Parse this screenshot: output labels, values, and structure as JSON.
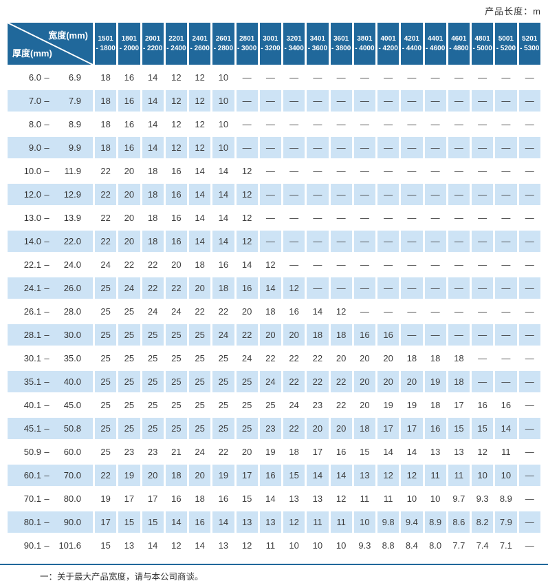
{
  "page": {
    "top_right_label": "产品长度：m",
    "footnote": "一：关于最大产品宽度，请与本公司商谈。"
  },
  "colors": {
    "header_bg": "#20689B",
    "stripe_bg": "#CDE3F5",
    "header_text": "#FFFFFF",
    "body_text": "#3D3D3D",
    "divider": "#20689B"
  },
  "table": {
    "corner": {
      "top_label": "宽度(mm)",
      "bottom_label": "厚度(mm)"
    },
    "range_separator": "–",
    "width_columns": [
      {
        "line1": "1501",
        "line2": "- 1800"
      },
      {
        "line1": "1801",
        "line2": "- 2000"
      },
      {
        "line1": "2001",
        "line2": "- 2200"
      },
      {
        "line1": "2201",
        "line2": "- 2400"
      },
      {
        "line1": "2401",
        "line2": "- 2600"
      },
      {
        "line1": "2601",
        "line2": "- 2800"
      },
      {
        "line1": "2801",
        "line2": "- 3000"
      },
      {
        "line1": "3001",
        "line2": "- 3200"
      },
      {
        "line1": "3201",
        "line2": "- 3400"
      },
      {
        "line1": "3401",
        "line2": "- 3600"
      },
      {
        "line1": "3601",
        "line2": "- 3800"
      },
      {
        "line1": "3801",
        "line2": "- 4000"
      },
      {
        "line1": "4001",
        "line2": "- 4200"
      },
      {
        "line1": "4201",
        "line2": "- 4400"
      },
      {
        "line1": "4401",
        "line2": "- 4600"
      },
      {
        "line1": "4601",
        "line2": "- 4800"
      },
      {
        "line1": "4801",
        "line2": "- 5000"
      },
      {
        "line1": "5001",
        "line2": "- 5200"
      },
      {
        "line1": "5201",
        "line2": "- 5300"
      }
    ],
    "rows": [
      {
        "min": "6.0",
        "max": "6.9",
        "values": [
          "18",
          "16",
          "14",
          "12",
          "12",
          "10",
          "—",
          "—",
          "—",
          "—",
          "—",
          "—",
          "—",
          "—",
          "—",
          "—",
          "—",
          "—",
          "—"
        ]
      },
      {
        "min": "7.0",
        "max": "7.9",
        "values": [
          "18",
          "16",
          "14",
          "12",
          "12",
          "10",
          "—",
          "—",
          "—",
          "—",
          "—",
          "—",
          "—",
          "—",
          "—",
          "—",
          "—",
          "—",
          "—"
        ]
      },
      {
        "min": "8.0",
        "max": "8.9",
        "values": [
          "18",
          "16",
          "14",
          "12",
          "12",
          "10",
          "—",
          "—",
          "—",
          "—",
          "—",
          "—",
          "—",
          "—",
          "—",
          "—",
          "—",
          "—",
          "—"
        ]
      },
      {
        "min": "9.0",
        "max": "9.9",
        "values": [
          "18",
          "16",
          "14",
          "12",
          "12",
          "10",
          "—",
          "—",
          "—",
          "—",
          "—",
          "—",
          "—",
          "—",
          "—",
          "—",
          "—",
          "—",
          "—"
        ]
      },
      {
        "min": "10.0",
        "max": "11.9",
        "values": [
          "22",
          "20",
          "18",
          "16",
          "14",
          "14",
          "12",
          "—",
          "—",
          "—",
          "—",
          "—",
          "—",
          "—",
          "—",
          "—",
          "—",
          "—",
          "—"
        ]
      },
      {
        "min": "12.0",
        "max": "12.9",
        "values": [
          "22",
          "20",
          "18",
          "16",
          "14",
          "14",
          "12",
          "—",
          "—",
          "—",
          "—",
          "—",
          "—",
          "—",
          "—",
          "—",
          "—",
          "—",
          "—"
        ]
      },
      {
        "min": "13.0",
        "max": "13.9",
        "values": [
          "22",
          "20",
          "18",
          "16",
          "14",
          "14",
          "12",
          "—",
          "—",
          "—",
          "—",
          "—",
          "—",
          "—",
          "—",
          "—",
          "—",
          "—",
          "—"
        ]
      },
      {
        "min": "14.0",
        "max": "22.0",
        "values": [
          "22",
          "20",
          "18",
          "16",
          "14",
          "14",
          "12",
          "—",
          "—",
          "—",
          "—",
          "—",
          "—",
          "—",
          "—",
          "—",
          "—",
          "—",
          "—"
        ]
      },
      {
        "min": "22.1",
        "max": "24.0",
        "values": [
          "24",
          "22",
          "22",
          "20",
          "18",
          "16",
          "14",
          "12",
          "—",
          "—",
          "—",
          "—",
          "—",
          "—",
          "—",
          "—",
          "—",
          "—",
          "—"
        ]
      },
      {
        "min": "24.1",
        "max": "26.0",
        "values": [
          "25",
          "24",
          "22",
          "22",
          "20",
          "18",
          "16",
          "14",
          "12",
          "—",
          "—",
          "—",
          "—",
          "—",
          "—",
          "—",
          "—",
          "—",
          "—"
        ]
      },
      {
        "min": "26.1",
        "max": "28.0",
        "values": [
          "25",
          "25",
          "24",
          "24",
          "22",
          "22",
          "20",
          "18",
          "16",
          "14",
          "12",
          "—",
          "—",
          "—",
          "—",
          "—",
          "—",
          "—",
          "—"
        ]
      },
      {
        "min": "28.1",
        "max": "30.0",
        "values": [
          "25",
          "25",
          "25",
          "25",
          "25",
          "24",
          "22",
          "20",
          "20",
          "18",
          "18",
          "16",
          "16",
          "—",
          "—",
          "—",
          "—",
          "—",
          "—"
        ]
      },
      {
        "min": "30.1",
        "max": "35.0",
        "values": [
          "25",
          "25",
          "25",
          "25",
          "25",
          "25",
          "24",
          "22",
          "22",
          "22",
          "20",
          "20",
          "20",
          "18",
          "18",
          "18",
          "—",
          "—",
          "—"
        ]
      },
      {
        "min": "35.1",
        "max": "40.0",
        "values": [
          "25",
          "25",
          "25",
          "25",
          "25",
          "25",
          "25",
          "24",
          "22",
          "22",
          "22",
          "20",
          "20",
          "20",
          "19",
          "18",
          "—",
          "—",
          "—"
        ]
      },
      {
        "min": "40.1",
        "max": "45.0",
        "values": [
          "25",
          "25",
          "25",
          "25",
          "25",
          "25",
          "25",
          "25",
          "24",
          "23",
          "22",
          "20",
          "19",
          "19",
          "18",
          "17",
          "16",
          "16",
          "—"
        ]
      },
      {
        "min": "45.1",
        "max": "50.8",
        "values": [
          "25",
          "25",
          "25",
          "25",
          "25",
          "25",
          "25",
          "23",
          "22",
          "20",
          "20",
          "18",
          "17",
          "17",
          "16",
          "15",
          "15",
          "14",
          "—"
        ]
      },
      {
        "min": "50.9",
        "max": "60.0",
        "values": [
          "25",
          "23",
          "23",
          "21",
          "24",
          "22",
          "20",
          "19",
          "18",
          "17",
          "16",
          "15",
          "14",
          "14",
          "13",
          "13",
          "12",
          "11",
          "—"
        ]
      },
      {
        "min": "60.1",
        "max": "70.0",
        "values": [
          "22",
          "19",
          "20",
          "18",
          "20",
          "19",
          "17",
          "16",
          "15",
          "14",
          "14",
          "13",
          "12",
          "12",
          "11",
          "11",
          "10",
          "10",
          "—"
        ]
      },
      {
        "min": "70.1",
        "max": "80.0",
        "values": [
          "19",
          "17",
          "17",
          "16",
          "18",
          "16",
          "15",
          "14",
          "13",
          "13",
          "12",
          "11",
          "11",
          "10",
          "10",
          "9.7",
          "9.3",
          "8.9",
          "—"
        ]
      },
      {
        "min": "80.1",
        "max": "90.0",
        "values": [
          "17",
          "15",
          "15",
          "14",
          "16",
          "14",
          "13",
          "13",
          "12",
          "11",
          "11",
          "10",
          "9.8",
          "9.4",
          "8.9",
          "8.6",
          "8.2",
          "7.9",
          "—"
        ]
      },
      {
        "min": "90.1",
        "max": "101.6",
        "values": [
          "15",
          "13",
          "14",
          "12",
          "14",
          "13",
          "12",
          "11",
          "10",
          "10",
          "10",
          "9.3",
          "8.8",
          "8.4",
          "8.0",
          "7.7",
          "7.4",
          "7.1",
          "—"
        ]
      }
    ]
  }
}
